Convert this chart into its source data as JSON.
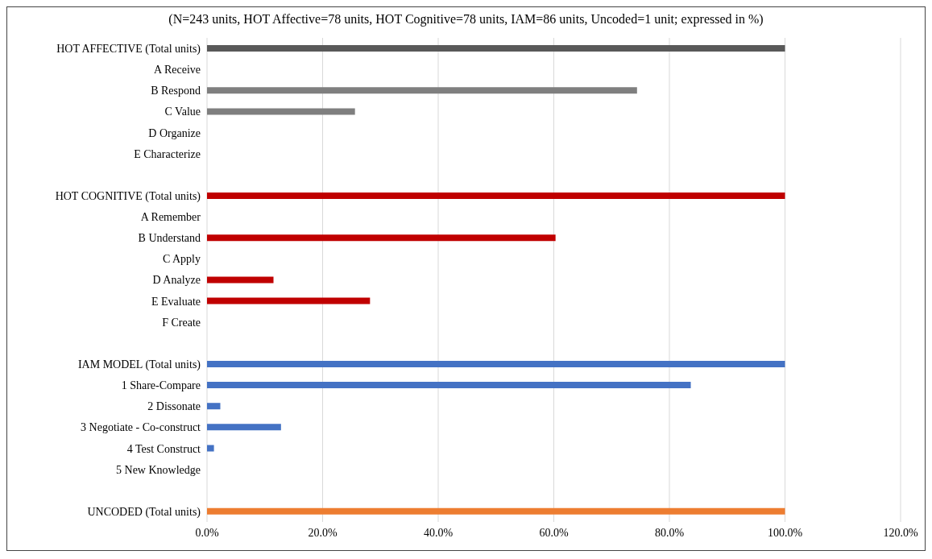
{
  "chart_data": {
    "type": "bar",
    "orientation": "horizontal",
    "title": "(N=243 units, HOT Affective=78 units, HOT Cognitive=78 units, IAM=86 units, Uncoded=1 unit; expressed in %)",
    "categories": [
      "HOT AFFECTIVE (Total units)",
      "A Receive",
      "B Respond",
      "C Value",
      "D Organize",
      "E Characterize",
      null,
      "HOT COGNITIVE (Total units)",
      "A Remember",
      "B Understand",
      "C Apply",
      "D Analyze",
      "E Evaluate",
      "F Create",
      null,
      "IAM MODEL (Total units)",
      "1 Share-Compare",
      "2 Dissonate",
      "3 Negotiate - Co-construct",
      "4 Test Construct",
      "5 New Knowledge",
      null,
      "UNCODED (Total units)"
    ],
    "values": [
      100,
      0,
      74.4,
      25.6,
      0,
      0,
      null,
      100,
      0,
      60.3,
      0,
      11.5,
      28.2,
      0,
      null,
      100,
      83.7,
      2.3,
      12.8,
      1.2,
      0,
      null,
      100
    ],
    "colors": [
      "#595959",
      "#7f7f7f",
      "#7f7f7f",
      "#7f7f7f",
      "#7f7f7f",
      "#7f7f7f",
      "#7f7f7f",
      "#c00000",
      "#c00000",
      "#c00000",
      "#c00000",
      "#c00000",
      "#c00000",
      "#c00000",
      "#4472c4",
      "#4472c4",
      "#4472c4",
      "#4472c4",
      "#4472c4",
      "#4472c4",
      "#4472c4",
      "#ed7d31",
      "#ed7d31"
    ],
    "xlim": [
      0,
      120
    ],
    "xticks": [
      {
        "value": 0,
        "label": "0.0%"
      },
      {
        "value": 20,
        "label": "20.0%"
      },
      {
        "value": 40,
        "label": "40.0%"
      },
      {
        "value": 60,
        "label": "60.0%"
      },
      {
        "value": 80,
        "label": "80.0%"
      },
      {
        "value": 100,
        "label": "100.0%"
      },
      {
        "value": 120,
        "label": "120.0%"
      }
    ],
    "grid": "x"
  }
}
